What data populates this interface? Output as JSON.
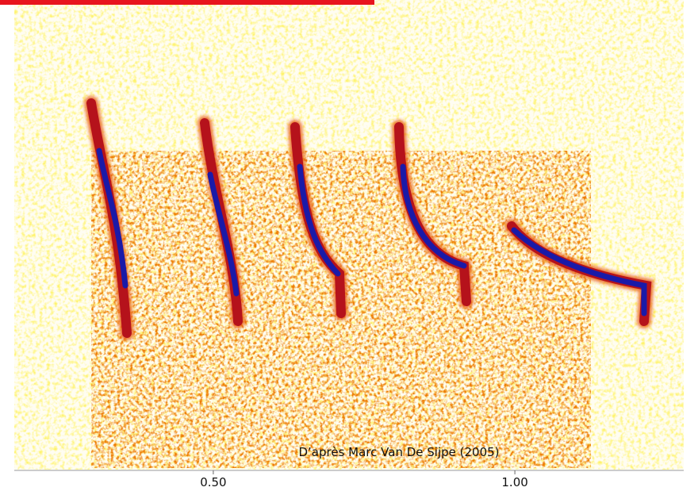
{
  "chart_data": {
    "type": "spectrogram",
    "annotation": "D’après Marc Van De Sijpe (2005)",
    "xlim": [
      0.17,
      1.28
    ],
    "xticks": [
      {
        "value": 0.5,
        "label": "0.50"
      },
      {
        "value": 1.0,
        "label": "1.00"
      }
    ]
  }
}
